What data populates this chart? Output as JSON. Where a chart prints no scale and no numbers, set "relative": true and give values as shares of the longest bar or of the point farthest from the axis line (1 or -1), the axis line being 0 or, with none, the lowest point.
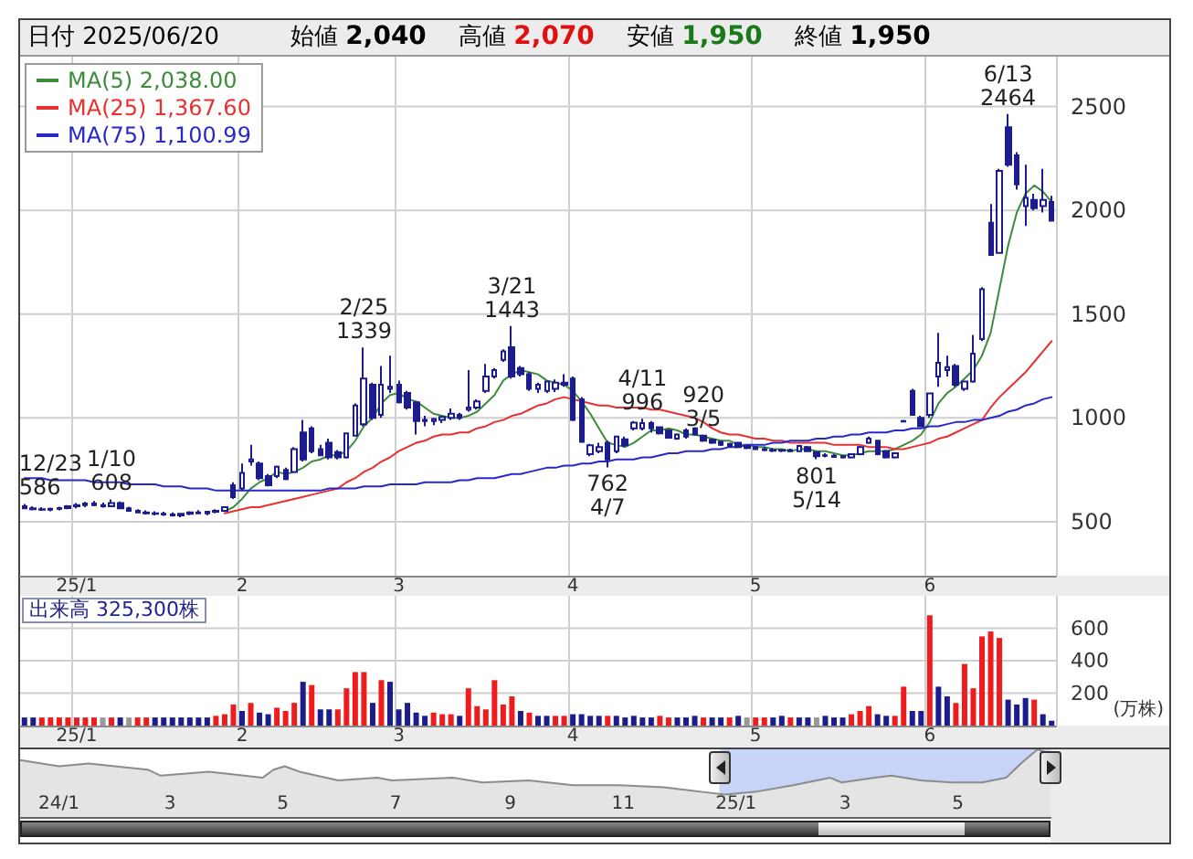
{
  "chart_data": [
    {
      "type": "candlestick",
      "color": "#1c1c8c",
      "legend": "top left",
      "marker": "none",
      "line_style": "solid",
      "grid": true,
      "annotations": [
        "日付 2025/06/20",
        "始値 2,040",
        "高値 2,070",
        "安値 1,950",
        "終値 1,950",
        {
          "text": "12/23\n586",
          "y": 586
        },
        {
          "text": "1/10\n608",
          "y": 608
        },
        {
          "text": "2/25\n1339",
          "y": 1339
        },
        {
          "text": "920\n3/5",
          "y": 920
        },
        {
          "text": "3/21\n1443",
          "y": 1443
        },
        {
          "text": "762\n4/7",
          "y": 762
        },
        {
          "text": "4/11\n996",
          "y": 996
        },
        {
          "text": "801\n5/14",
          "y": 801
        },
        {
          "text": "6/13\n2464",
          "y": 2464
        }
      ],
      "categories": [
        null,
        null,
        null,
        null,
        null,
        null,
        "25/1",
        null,
        null,
        null,
        null,
        null,
        null,
        null,
        null,
        null,
        null,
        null,
        null,
        null,
        null,
        null,
        null,
        null,
        null,
        "2",
        null,
        null,
        null,
        null,
        null,
        null,
        null,
        null,
        null,
        null,
        null,
        null,
        null,
        null,
        null,
        null,
        null,
        "3",
        null,
        null,
        null,
        null,
        null,
        null,
        null,
        null,
        null,
        null,
        null,
        null,
        null,
        null,
        null,
        null,
        null,
        null,
        null,
        "4",
        null,
        null,
        null,
        null,
        null,
        null,
        null,
        null,
        null,
        null,
        null,
        null,
        null,
        null,
        null,
        null,
        null,
        null,
        null,
        null,
        "5",
        null,
        null,
        null,
        null,
        null,
        null,
        null,
        null,
        null,
        null,
        null,
        null,
        null,
        null,
        null,
        null,
        null,
        null,
        null,
        "6",
        null,
        null,
        null,
        null,
        null,
        null,
        null,
        null,
        null,
        null,
        null,
        null,
        null,
        null
      ],
      "ohlc": [
        [
          575,
          586,
          560,
          565
        ],
        [
          565,
          575,
          555,
          560
        ],
        [
          560,
          570,
          552,
          558
        ],
        [
          558,
          568,
          550,
          562
        ],
        [
          562,
          572,
          555,
          566
        ],
        [
          566,
          580,
          560,
          575
        ],
        [
          575,
          590,
          565,
          580
        ],
        [
          580,
          595,
          570,
          588
        ],
        [
          588,
          600,
          575,
          580
        ],
        [
          580,
          592,
          568,
          575
        ],
        [
          575,
          608,
          570,
          590
        ],
        [
          590,
          598,
          560,
          565
        ],
        [
          565,
          572,
          548,
          552
        ],
        [
          552,
          560,
          540,
          545
        ],
        [
          545,
          555,
          535,
          540
        ],
        [
          540,
          550,
          530,
          538
        ],
        [
          538,
          548,
          528,
          535
        ],
        [
          535,
          545,
          525,
          530
        ],
        [
          530,
          542,
          522,
          538
        ],
        [
          538,
          550,
          532,
          545
        ],
        [
          545,
          556,
          538,
          540
        ],
        [
          540,
          552,
          532,
          548
        ],
        [
          548,
          560,
          540,
          552
        ],
        [
          552,
          575,
          548,
          570
        ],
        [
          676,
          690,
          610,
          618
        ],
        [
          660,
          780,
          650,
          735
        ],
        [
          790,
          870,
          770,
          800
        ],
        [
          780,
          790,
          700,
          710
        ],
        [
          720,
          730,
          670,
          676
        ],
        [
          720,
          770,
          710,
          765
        ],
        [
          750,
          760,
          700,
          705
        ],
        [
          740,
          860,
          735,
          850
        ],
        [
          930,
          990,
          790,
          800
        ],
        [
          950,
          960,
          830,
          840
        ],
        [
          850,
          870,
          815,
          820
        ],
        [
          880,
          900,
          800,
          810
        ],
        [
          835,
          845,
          800,
          810
        ],
        [
          810,
          930,
          805,
          925
        ],
        [
          915,
          1070,
          910,
          1060
        ],
        [
          970,
          1339,
          960,
          1190
        ],
        [
          1160,
          1170,
          990,
          1000
        ],
        [
          1015,
          1250,
          1000,
          1160
        ],
        [
          1140,
          1300,
          1120,
          1150
        ],
        [
          1160,
          1180,
          1070,
          1075
        ],
        [
          1120,
          1130,
          1040,
          1050
        ],
        [
          1075,
          1080,
          920,
          985
        ],
        [
          985,
          1010,
          960,
          990
        ],
        [
          985,
          1000,
          965,
          995
        ],
        [
          990,
          1010,
          975,
          1005
        ],
        [
          1000,
          1045,
          990,
          1020
        ],
        [
          1015,
          1025,
          990,
          1000
        ],
        [
          1040,
          1230,
          1030,
          1050
        ],
        [
          1050,
          1090,
          1040,
          1080
        ],
        [
          1130,
          1260,
          1120,
          1200
        ],
        [
          1200,
          1240,
          1190,
          1230
        ],
        [
          1280,
          1330,
          1270,
          1320
        ],
        [
          1340,
          1443,
          1190,
          1200
        ],
        [
          1240,
          1250,
          1200,
          1210
        ],
        [
          1210,
          1220,
          1130,
          1140
        ],
        [
          1140,
          1170,
          1120,
          1160
        ],
        [
          1130,
          1180,
          1120,
          1175
        ],
        [
          1140,
          1185,
          1125,
          1170
        ],
        [
          1170,
          1210,
          1150,
          1160
        ],
        [
          1190,
          1200,
          985,
          990
        ],
        [
          1090,
          1100,
          880,
          885
        ],
        [
          825,
          875,
          815,
          868
        ],
        [
          840,
          880,
          830,
          860
        ],
        [
          880,
          890,
          762,
          800
        ],
        [
          840,
          915,
          830,
          910
        ],
        [
          897,
          910,
          860,
          868
        ],
        [
          950,
          985,
          940,
          977
        ],
        [
          950,
          996,
          940,
          975
        ],
        [
          975,
          985,
          930,
          950
        ],
        [
          955,
          960,
          920,
          926
        ],
        [
          940,
          945,
          900,
          905
        ],
        [
          900,
          925,
          895,
          920
        ],
        [
          940,
          950,
          900,
          910
        ],
        [
          950,
          955,
          915,
          920
        ],
        [
          915,
          920,
          885,
          890
        ],
        [
          895,
          900,
          875,
          880
        ],
        [
          885,
          890,
          865,
          870
        ],
        [
          875,
          880,
          860,
          865
        ],
        [
          880,
          885,
          855,
          860
        ],
        [
          865,
          870,
          850,
          855
        ],
        [
          860,
          865,
          845,
          850
        ],
        [
          850,
          860,
          840,
          845
        ],
        [
          845,
          855,
          835,
          842
        ],
        [
          842,
          850,
          835,
          845
        ],
        [
          845,
          852,
          838,
          840
        ],
        [
          840,
          870,
          835,
          865
        ],
        [
          860,
          865,
          835,
          840
        ],
        [
          835,
          840,
          801,
          815
        ],
        [
          820,
          830,
          810,
          818
        ],
        [
          818,
          825,
          808,
          812
        ],
        [
          815,
          820,
          805,
          810
        ],
        [
          810,
          830,
          805,
          825
        ],
        [
          825,
          865,
          820,
          860
        ],
        [
          880,
          910,
          875,
          900
        ],
        [
          890,
          895,
          820,
          825
        ],
        [
          840,
          845,
          805,
          810
        ],
        [
          810,
          835,
          805,
          830
        ],
        [
          983,
          990,
          980,
          985
        ],
        [
          1130,
          1140,
          1010,
          1015
        ],
        [
          1000,
          1010,
          955,
          960
        ],
        [
          1015,
          1120,
          1000,
          1118
        ],
        [
          1200,
          1410,
          1150,
          1265
        ],
        [
          1230,
          1300,
          1200,
          1245
        ],
        [
          1250,
          1260,
          1150,
          1160
        ],
        [
          1140,
          1180,
          1130,
          1175
        ],
        [
          1175,
          1400,
          1170,
          1310
        ],
        [
          1380,
          1630,
          1370,
          1620
        ],
        [
          1940,
          2030,
          1780,
          1785
        ],
        [
          1795,
          2200,
          1790,
          2190
        ],
        [
          2400,
          2464,
          2210,
          2220
        ],
        [
          2265,
          2280,
          2100,
          2125
        ],
        [
          2020,
          2220,
          1925,
          2060
        ],
        [
          2050,
          2080,
          2000,
          2010
        ],
        [
          2020,
          2200,
          1990,
          2050
        ],
        [
          2040,
          2070,
          1950,
          1950
        ]
      ],
      "series": [
        {
          "name": "MA(5) 2,038.00",
          "type": "line",
          "color": "#3c8c3c",
          "values": [
            null,
            null,
            null,
            null,
            null,
            null,
            null,
            null,
            null,
            null,
            null,
            null,
            null,
            null,
            null,
            null,
            null,
            null,
            null,
            null,
            null,
            null,
            null,
            550,
            570,
            610,
            660,
            690,
            710,
            740,
            730,
            740,
            760,
            790,
            800,
            820,
            820,
            840,
            890,
            960,
            1000,
            1070,
            1110,
            1120,
            1090,
            1080,
            1050,
            1020,
            1010,
            1000,
            1000,
            1010,
            1030,
            1070,
            1110,
            1180,
            1210,
            1230,
            1220,
            1210,
            1180,
            1170,
            1160,
            1130,
            1080,
            1020,
            950,
            880,
            870,
            860,
            880,
            910,
            940,
            940,
            950,
            940,
            920,
            920,
            910,
            900,
            890,
            890,
            870,
            870,
            860,
            860,
            850,
            850,
            840,
            850,
            850,
            840,
            840,
            830,
            820,
            820,
            830,
            840,
            840,
            840,
            850,
            870,
            890,
            920,
            980,
            1070,
            1120,
            1150,
            1190,
            1230,
            1300,
            1410,
            1620,
            1830,
            1990,
            2080,
            2120,
            2090,
            2040
          ]
        },
        {
          "name": "MA(25) 1,367.60",
          "type": "line",
          "color": "#e83030",
          "values": [
            null,
            null,
            null,
            null,
            null,
            null,
            null,
            null,
            null,
            null,
            null,
            null,
            null,
            null,
            null,
            null,
            null,
            null,
            null,
            null,
            null,
            null,
            null,
            540,
            550,
            560,
            570,
            570,
            580,
            590,
            600,
            610,
            620,
            630,
            640,
            650,
            660,
            690,
            710,
            740,
            760,
            790,
            810,
            840,
            860,
            880,
            890,
            910,
            920,
            920,
            930,
            930,
            950,
            960,
            980,
            990,
            1010,
            1020,
            1040,
            1060,
            1070,
            1090,
            1100,
            1090,
            1080,
            1070,
            1060,
            1060,
            1050,
            1050,
            1050,
            1050,
            1040,
            1040,
            1030,
            1020,
            1010,
            1000,
            980,
            950,
            930,
            920,
            920,
            910,
            900,
            900,
            890,
            890,
            880,
            880,
            880,
            880,
            880,
            870,
            870,
            870,
            870,
            860,
            860,
            860,
            850,
            850,
            860,
            870,
            880,
            900,
            910,
            930,
            950,
            970,
            990,
            1050,
            1100,
            1140,
            1180,
            1220,
            1270,
            1320,
            1370
          ]
        },
        {
          "name": "MA(75) 1,100.99",
          "type": "line",
          "color": "#2828c8",
          "values": [
            710,
            710,
            710,
            700,
            700,
            700,
            700,
            700,
            690,
            690,
            690,
            690,
            680,
            680,
            680,
            680,
            670,
            670,
            670,
            660,
            660,
            660,
            650,
            650,
            650,
            650,
            650,
            650,
            650,
            650,
            650,
            650,
            650,
            650,
            650,
            660,
            660,
            660,
            660,
            670,
            670,
            670,
            680,
            680,
            680,
            680,
            690,
            690,
            690,
            690,
            700,
            700,
            710,
            710,
            710,
            720,
            730,
            730,
            740,
            750,
            760,
            760,
            770,
            770,
            780,
            780,
            790,
            790,
            800,
            800,
            800,
            810,
            810,
            820,
            830,
            830,
            840,
            840,
            840,
            850,
            850,
            860,
            860,
            870,
            870,
            870,
            880,
            880,
            890,
            890,
            890,
            900,
            900,
            910,
            910,
            920,
            920,
            930,
            930,
            930,
            940,
            940,
            950,
            950,
            960,
            960,
            970,
            980,
            980,
            990,
            990,
            1000,
            1010,
            1030,
            1040,
            1060,
            1070,
            1090,
            1100
          ]
        }
      ],
      "ylim": [
        240,
        2740
      ],
      "yticks": [
        500,
        1000,
        1500,
        2000,
        2500
      ]
    },
    {
      "type": "bar",
      "grid": true,
      "ylabel": "(万株)",
      "annotations": [
        "出来高 325,300株"
      ],
      "categories": [
        null,
        null,
        null,
        null,
        null,
        null,
        "25/1",
        null,
        null,
        null,
        null,
        null,
        null,
        null,
        null,
        null,
        null,
        null,
        null,
        null,
        null,
        null,
        null,
        null,
        null,
        "2",
        null,
        null,
        null,
        null,
        null,
        null,
        null,
        null,
        null,
        null,
        null,
        null,
        null,
        null,
        null,
        null,
        null,
        "3",
        null,
        null,
        null,
        null,
        null,
        null,
        null,
        null,
        null,
        null,
        null,
        null,
        null,
        null,
        null,
        null,
        null,
        null,
        null,
        "4",
        null,
        null,
        null,
        null,
        null,
        null,
        null,
        null,
        null,
        null,
        null,
        null,
        null,
        null,
        null,
        null,
        null,
        null,
        null,
        null,
        "5",
        null,
        null,
        null,
        null,
        null,
        null,
        null,
        null,
        null,
        null,
        null,
        null,
        null,
        null,
        null,
        null,
        null,
        null,
        null,
        "6",
        null,
        null,
        null,
        null,
        null,
        null,
        null,
        null,
        null,
        null,
        null,
        null,
        null,
        null
      ],
      "values": [
        50,
        50,
        50,
        50,
        50,
        50,
        50,
        50,
        50,
        50,
        50,
        50,
        50,
        50,
        50,
        50,
        50,
        50,
        50,
        50,
        50,
        50,
        60,
        70,
        130,
        90,
        140,
        80,
        70,
        110,
        90,
        140,
        270,
        250,
        100,
        100,
        100,
        230,
        330,
        330,
        140,
        280,
        270,
        100,
        140,
        80,
        60,
        80,
        70,
        70,
        60,
        230,
        120,
        100,
        280,
        130,
        180,
        90,
        80,
        60,
        60,
        60,
        60,
        70,
        70,
        60,
        60,
        60,
        60,
        50,
        60,
        50,
        50,
        60,
        50,
        50,
        50,
        60,
        50,
        50,
        50,
        50,
        60,
        50,
        50,
        50,
        50,
        60,
        50,
        50,
        50,
        50,
        60,
        50,
        50,
        70,
        90,
        120,
        70,
        60,
        60,
        240,
        90,
        90,
        680,
        240,
        180,
        140,
        380,
        230,
        550,
        580,
        540,
        160,
        130,
        170,
        160,
        70,
        30
      ],
      "colors": [
        "#1c1c8c",
        "#1c1c8c",
        "#ee1c1c",
        "#ee1c1c",
        "#ee1c1c",
        "#ee1c1c",
        "#ee1c1c",
        "#ee1c1c",
        "#ee1c1c",
        "#999999",
        "#ee1c1c",
        "#1c1c8c",
        "#999999",
        "#ee1c1c",
        "#ee1c1c",
        "#1c1c8c",
        "#1c1c8c",
        "#1c1c8c",
        "#1c1c8c",
        "#1c1c8c",
        "#1c1c8c",
        "#1c1c8c",
        "#ee1c1c",
        "#ee1c1c",
        "#ee1c1c",
        "#1c1c8c",
        "#ee1c1c",
        "#1c1c8c",
        "#1c1c8c",
        "#ee1c1c",
        "#ee1c1c",
        "#ee1c1c",
        "#1c1c8c",
        "#ee1c1c",
        "#1c1c8c",
        "#1c1c8c",
        "#ee1c1c",
        "#ee1c1c",
        "#ee1c1c",
        "#ee1c1c",
        "#1c1c8c",
        "#ee1c1c",
        "#1c1c8c",
        "#1c1c8c",
        "#1c1c8c",
        "#1c1c8c",
        "#1c1c8c",
        "#ee1c1c",
        "#ee1c1c",
        "#ee1c1c",
        "#1c1c8c",
        "#ee1c1c",
        "#ee1c1c",
        "#ee1c1c",
        "#ee1c1c",
        "#ee1c1c",
        "#ee1c1c",
        "#1c1c8c",
        "#ee1c1c",
        "#1c1c8c",
        "#1c1c8c",
        "#ee1c1c",
        "#ee1c1c",
        "#1c1c8c",
        "#1c1c8c",
        "#1c1c8c",
        "#1c1c8c",
        "#ee1c1c",
        "#1c1c8c",
        "#1c1c8c",
        "#1c1c8c",
        "#1c1c8c",
        "#1c1c8c",
        "#ee1c1c",
        "#ee1c1c",
        "#1c1c8c",
        "#1c1c8c",
        "#1c1c8c",
        "#ee1c1c",
        "#1c1c8c",
        "#1c1c8c",
        "#ee1c1c",
        "#1c1c8c",
        "#999999",
        "#ee1c1c",
        "#ee1c1c",
        "#1c1c8c",
        "#1c1c8c",
        "#ee1c1c",
        "#1c1c8c",
        "#1c1c8c",
        "#999999",
        "#1c1c8c",
        "#1c1c8c",
        "#1c1c8c",
        "#ee1c1c",
        "#ee1c1c",
        "#ee1c1c",
        "#1c1c8c",
        "#1c1c8c",
        "#ee1c1c",
        "#ee1c1c",
        "#1c1c8c",
        "#1c1c8c",
        "#ee1c1c",
        "#1c1c8c",
        "#1c1c8c",
        "#ee1c1c",
        "#ee1c1c",
        "#ee1c1c",
        "#ee1c1c",
        "#ee1c1c",
        "#ee1c1c",
        "#1c1c8c",
        "#1c1c8c",
        "#1c1c8c",
        "#ee1c1c",
        "#1c1c8c",
        "#1c1c8c"
      ],
      "ylim": [
        0,
        800
      ],
      "yticks": [
        200,
        400,
        600
      ]
    },
    {
      "type": "area",
      "relative": true,
      "color": "#8c8c8c",
      "x": [
        "2023-12-11",
        "2024-01-01",
        "2024-01-17",
        "2024-02-18",
        "2024-02-25",
        "2024-03-22",
        "2024-04-20",
        "2024-04-26",
        "2024-05-02",
        "2024-05-10",
        "2024-05-31",
        "2024-06-21",
        "2024-06-29",
        "2024-08-01",
        "2024-08-17",
        "2024-09-11",
        "2024-10-05",
        "2024-10-30",
        "2024-11-23",
        "2024-12-14",
        "2024-12-26",
        "2025-01-11",
        "2025-02-01",
        "2025-02-21",
        "2025-02-27",
        "2025-03-17",
        "2025-03-26",
        "2025-04-11",
        "2025-04-28",
        "2025-05-14",
        "2025-05-27",
        "2025-06-04",
        "2025-06-13",
        "2025-06-20"
      ],
      "values": [
        0.84,
        0.75,
        0.79,
        0.7,
        0.61,
        0.67,
        0.58,
        0.7,
        0.75,
        0.67,
        0.54,
        0.58,
        0.54,
        0.58,
        0.51,
        0.54,
        0.47,
        0.47,
        0.44,
        0.37,
        0.33,
        0.37,
        0.47,
        0.58,
        0.51,
        0.58,
        0.61,
        0.54,
        0.51,
        0.51,
        0.58,
        0.79,
        1,
        0.93
      ],
      "xlim": [
        "2023-12-11",
        "2025-06-20"
      ],
      "xticks": [
        {
          "value": "2024-01-01",
          "label": "24/1"
        },
        {
          "value": "2024-03-01",
          "label": "3"
        },
        {
          "value": "2024-05-01",
          "label": "5"
        },
        {
          "value": "2024-07-01",
          "label": "7"
        },
        {
          "value": "2024-09-01",
          "label": "9"
        },
        {
          "value": "2024-11-01",
          "label": "11"
        },
        {
          "value": "2025-01-01",
          "label": "25/1"
        },
        {
          "value": "2025-03-01",
          "label": "3"
        },
        {
          "value": "2025-05-01",
          "label": "5"
        }
      ],
      "bands": [
        {
          "axis": "x",
          "from": "2024-12-23",
          "to": "2025-06-20",
          "color": "#b4c4f4"
        }
      ]
    }
  ]
}
